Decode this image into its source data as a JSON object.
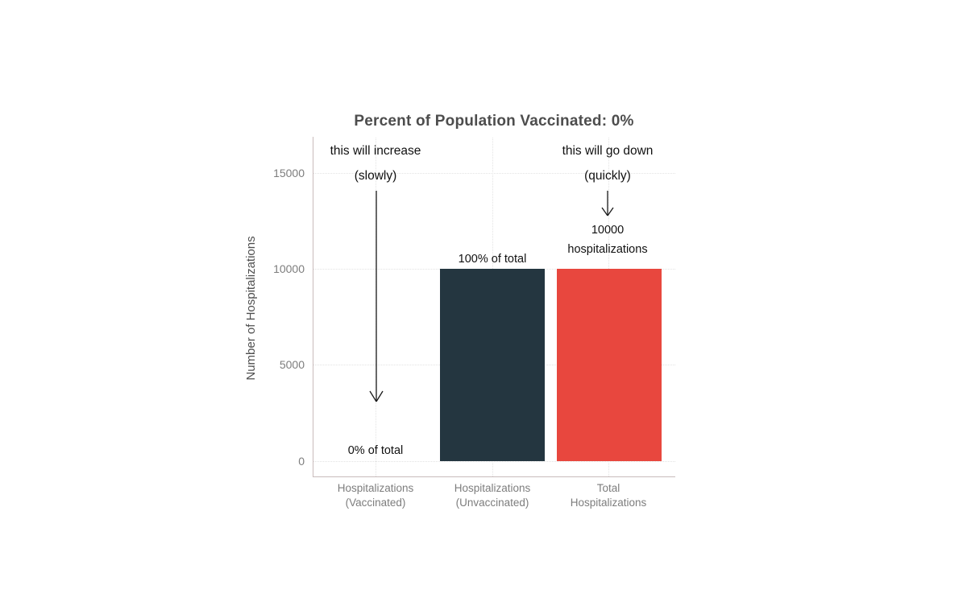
{
  "chart": {
    "title": "Percent of Population Vaccinated: 0%",
    "y_axis": {
      "label": "Number of Hospitalizations",
      "ticks": [
        "15000",
        "10000",
        "5000",
        "0"
      ]
    },
    "x_axis": {
      "categories": [
        {
          "line1": "Hospitalizations",
          "line2": "(Vaccinated)"
        },
        {
          "line1": "Hospitalizations",
          "line2": "(Unvaccinated)"
        },
        {
          "line1": "Total",
          "line2": "Hospitalizations"
        }
      ]
    },
    "annotations": {
      "increase_line1": "this will increase",
      "increase_line2": "(slowly)",
      "decrease_line1": "this will go down",
      "decrease_line2": "(quickly)",
      "zero_pct": "0% of total",
      "hundred_pct": "100% of total",
      "total_value": "10000",
      "total_unit": "hospitalizations"
    },
    "colors": {
      "unvaccinated_bar": "#243640",
      "total_bar": "#E8473E",
      "axis_line": "#c9bbbb",
      "gridline": "#e3e3e3",
      "title_text": "#4d4d4d",
      "tick_text": "#7d7d7d"
    }
  },
  "chart_data": {
    "type": "bar",
    "title": "Percent of Population Vaccinated: 0%",
    "categories": [
      "Hospitalizations (Vaccinated)",
      "Hospitalizations (Unvaccinated)",
      "Total Hospitalizations"
    ],
    "values": [
      0,
      10000,
      10000
    ],
    "bar_colors": [
      "#243640",
      "#243640",
      "#E8473E"
    ],
    "xlabel": "",
    "ylabel": "Number of Hospitalizations",
    "ylim": [
      0,
      15000
    ],
    "yticks": [
      0,
      5000,
      10000,
      15000
    ],
    "grid": "dotted-major-horizontal-and-vertical",
    "legend": "none",
    "annotations": [
      {
        "target": "Hospitalizations (Vaccinated)",
        "text": "this will increase (slowly)",
        "arrow": "long-down-arrow"
      },
      {
        "target": "Hospitalizations (Vaccinated)",
        "text": "0% of total"
      },
      {
        "target": "Hospitalizations (Unvaccinated)",
        "text": "100% of total"
      },
      {
        "target": "Total Hospitalizations",
        "text": "this will go down (quickly)",
        "arrow": "short-down-arrow"
      },
      {
        "target": "Total Hospitalizations",
        "text": "10000 hospitalizations"
      }
    ]
  }
}
